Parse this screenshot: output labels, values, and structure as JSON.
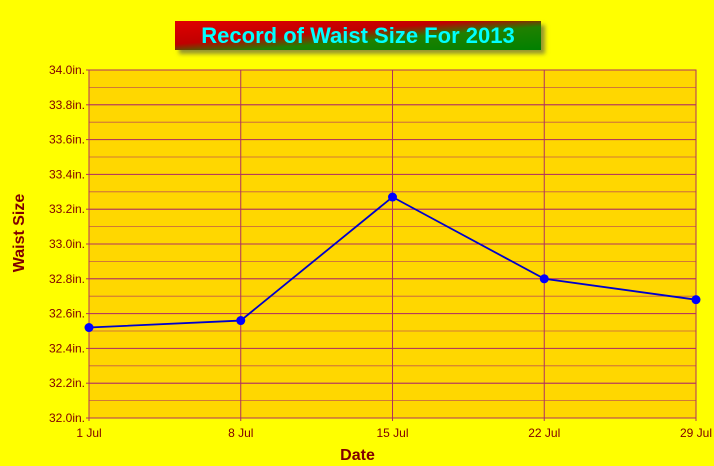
{
  "chart_data": {
    "type": "line",
    "title": "Record of Waist Size For 2013",
    "xlabel": "Date",
    "ylabel": "Waist Size",
    "categories": [
      "1 Jul",
      "8 Jul",
      "15 Jul",
      "22 Jul",
      "29 Jul"
    ],
    "series": [
      {
        "values": [
          32.52,
          32.56,
          33.27,
          32.8,
          32.68
        ]
      }
    ],
    "ylim": [
      32.0,
      34.0
    ],
    "y_major_ticks": [
      32.0,
      32.2,
      32.4,
      32.6,
      32.8,
      33.0,
      33.2,
      33.4,
      33.6,
      33.8,
      34.0
    ],
    "y_minor_step": 0.1,
    "y_tick_suffix": "in.",
    "grid": true,
    "colors": {
      "page_background": "#ffff00",
      "plot_background": "#ffd700",
      "grid_line": "#b03060",
      "axis_text": "#800000",
      "series_line": "#0000cc",
      "series_marker": "#0000ff",
      "title_text": "#00ffff"
    }
  }
}
